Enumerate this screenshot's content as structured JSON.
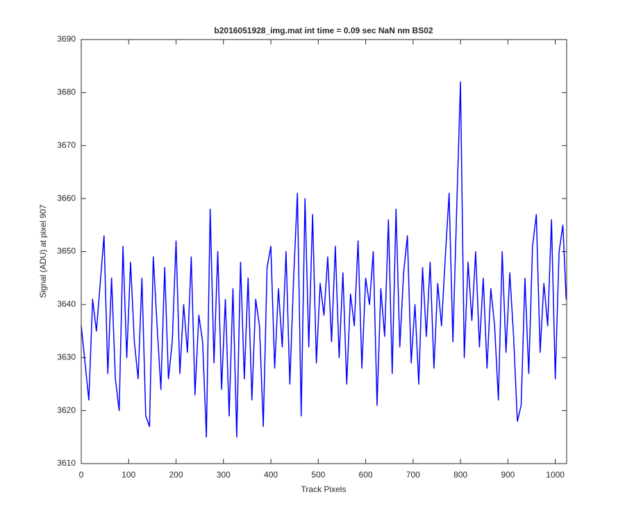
{
  "chart_data": {
    "type": "line",
    "title": "b2016051928_img.mat int time = 0.09 sec  NaN nm BS02",
    "xlabel": "Track Pixels",
    "ylabel": "Signal (ADU) at pixel 907",
    "x": [
      0,
      8,
      16,
      24,
      32,
      40,
      48,
      56,
      64,
      72,
      80,
      88,
      96,
      104,
      112,
      120,
      128,
      136,
      144,
      152,
      160,
      168,
      176,
      184,
      192,
      200,
      208,
      216,
      224,
      232,
      240,
      248,
      256,
      264,
      272,
      280,
      288,
      296,
      304,
      312,
      320,
      328,
      336,
      344,
      352,
      360,
      368,
      376,
      384,
      392,
      400,
      408,
      416,
      424,
      432,
      440,
      448,
      456,
      464,
      472,
      480,
      488,
      496,
      504,
      512,
      520,
      528,
      536,
      544,
      552,
      560,
      568,
      576,
      584,
      592,
      600,
      608,
      616,
      624,
      632,
      640,
      648,
      656,
      664,
      672,
      680,
      688,
      696,
      704,
      712,
      720,
      728,
      736,
      744,
      752,
      760,
      768,
      776,
      784,
      792,
      800,
      808,
      816,
      824,
      832,
      840,
      848,
      856,
      864,
      872,
      880,
      888,
      896,
      904,
      912,
      920,
      928,
      936,
      944,
      952,
      960,
      968,
      976,
      984,
      992,
      1000,
      1008,
      1016,
      1023
    ],
    "series": [
      {
        "color": "#0000ff",
        "values": [
          3636,
          3629,
          3622,
          3641,
          3635,
          3644,
          3653,
          3627,
          3645,
          3626,
          3620,
          3651,
          3630,
          3648,
          3633,
          3626,
          3645,
          3619,
          3617,
          3649,
          3636,
          3624,
          3647,
          3626,
          3633,
          3652,
          3627,
          3640,
          3631,
          3649,
          3623,
          3638,
          3633,
          3615,
          3658,
          3629,
          3650,
          3624,
          3641,
          3619,
          3643,
          3615,
          3648,
          3626,
          3645,
          3622,
          3641,
          3636,
          3617,
          3647,
          3651,
          3628,
          3643,
          3632,
          3650,
          3625,
          3645,
          3661,
          3619,
          3660,
          3632,
          3657,
          3629,
          3644,
          3638,
          3649,
          3633,
          3651,
          3630,
          3646,
          3625,
          3642,
          3636,
          3652,
          3628,
          3645,
          3640,
          3650,
          3621,
          3643,
          3634,
          3656,
          3627,
          3658,
          3632,
          3646,
          3653,
          3629,
          3640,
          3625,
          3647,
          3634,
          3648,
          3628,
          3644,
          3636,
          3649,
          3661,
          3633,
          3658,
          3682,
          3630,
          3648,
          3637,
          3650,
          3632,
          3645,
          3628,
          3643,
          3636,
          3622,
          3650,
          3631,
          3646,
          3634,
          3618,
          3621,
          3645,
          3627,
          3651,
          3657,
          3631,
          3644,
          3636,
          3656,
          3626,
          3650,
          3655,
          3641
        ]
      }
    ],
    "xlim": [
      0,
      1024
    ],
    "ylim": [
      3610,
      3690
    ],
    "xticks": [
      0,
      100,
      200,
      300,
      400,
      500,
      600,
      700,
      800,
      900,
      1000
    ],
    "yticks": [
      3610,
      3620,
      3630,
      3640,
      3650,
      3660,
      3670,
      3680,
      3690
    ]
  }
}
